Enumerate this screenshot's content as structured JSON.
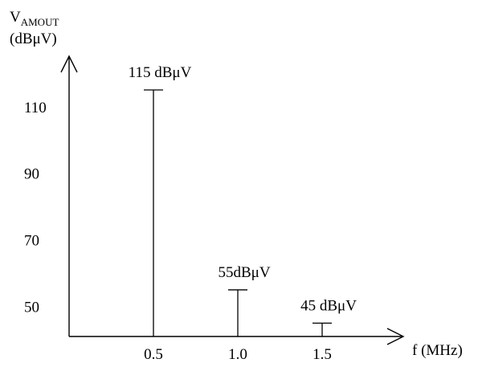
{
  "chart_data": {
    "type": "bar",
    "title": "",
    "ylabel": {
      "main": "V",
      "subscript": "AMOUT",
      "unit": "(dBμV)"
    },
    "xlabel": "f (MHz)",
    "x_ticks": [
      "0.5",
      "1.0",
      "1.5"
    ],
    "y_ticks": [
      "50",
      "70",
      "90",
      "110"
    ],
    "ylim": [
      41,
      122
    ],
    "xlim": [
      0,
      2.2
    ],
    "grid": false,
    "points": [
      {
        "x": 0.5,
        "value": 115,
        "label": "115 dBμV"
      },
      {
        "x": 1.0,
        "value": 55,
        "label": "55dBμV"
      },
      {
        "x": 1.5,
        "value": 45,
        "label": "45 dBμV"
      }
    ]
  }
}
